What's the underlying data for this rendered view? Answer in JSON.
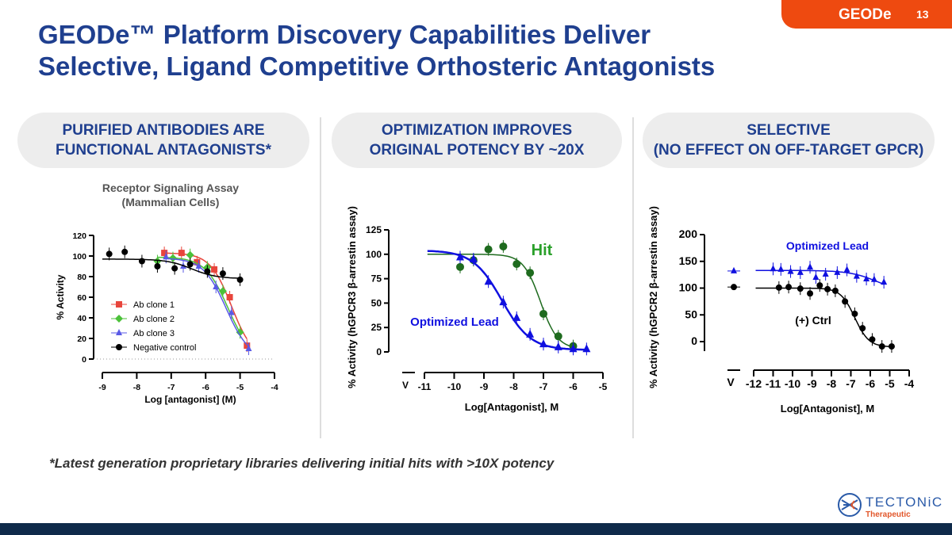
{
  "header": {
    "title_line1": "GEODe™ Platform Discovery Capabilities Deliver",
    "title_line2": "Selective, Ligand Competitive Orthosteric Antagonists",
    "badge": "GEODe",
    "page_number": "13"
  },
  "pills": [
    {
      "line1": "PURIFIED ANTIBODIES ARE",
      "line2": "FUNCTIONAL ANTAGONISTS*"
    },
    {
      "line1": "OPTIMIZATION IMPROVES",
      "line2": "ORIGINAL POTENCY BY ~20X"
    },
    {
      "line1": "SELECTIVE",
      "line2": "(NO EFFECT ON OFF-TARGET GPCR)"
    }
  ],
  "footnote": "*Latest generation proprietary libraries delivering initial hits with >10X potency",
  "logo": {
    "name": "TECTONiC",
    "sub": "Therapeutic"
  },
  "colors": {
    "brand_blue": "#1f3f8f",
    "accent_orange": "#ee4a10",
    "footer": "#0f2a4a"
  },
  "chart_data": [
    {
      "type": "scatter",
      "title": "Receptor Signaling Assay",
      "subtitle": "(Mammalian Cells)",
      "xlabel": "Log [antagonist] (M)",
      "ylabel": "% Activity",
      "xlim": [
        -9,
        -4
      ],
      "ylim": [
        0,
        120
      ],
      "xticks": [
        -9,
        -8,
        -7,
        -6,
        -5,
        -4
      ],
      "yticks": [
        0,
        20,
        40,
        60,
        80,
        100,
        120
      ],
      "legend": "bottom-left",
      "series": [
        {
          "name": "Ab clone 1",
          "color": "#e8453c",
          "marker": "square",
          "x": [
            -7.2,
            -6.7,
            -6.25,
            -5.75,
            -5.3,
            -4.8
          ],
          "y": [
            103,
            103,
            94,
            87,
            60,
            13
          ]
        },
        {
          "name": "Ab clone 2",
          "color": "#4cc13a",
          "marker": "diamond",
          "x": [
            -7.4,
            -6.95,
            -6.45,
            -5.95,
            -5.5,
            -5.0
          ],
          "y": [
            95,
            98,
            101,
            89,
            66,
            26
          ]
        },
        {
          "name": "Ab clone 3",
          "color": "#5a5ae6",
          "marker": "triangle",
          "x": [
            -7.15,
            -6.65,
            -6.2,
            -5.7,
            -5.25,
            -4.75
          ],
          "y": [
            99,
            90,
            90,
            70,
            45,
            10
          ]
        },
        {
          "name": "Negative control",
          "color": "#000000",
          "marker": "circle",
          "x": [
            -8.8,
            -8.35,
            -7.85,
            -7.4,
            -6.9,
            -6.45,
            -5.95,
            -5.5,
            -5.0
          ],
          "y": [
            102,
            104,
            95,
            90,
            88,
            92,
            85,
            83,
            77
          ]
        }
      ]
    },
    {
      "type": "scatter",
      "xlabel": "Log[Antagonist], M",
      "ylabel": "% Activity (hGPCR3 β-arrestin assay)",
      "xlim": [
        -11,
        -5
      ],
      "ylim": [
        0,
        125
      ],
      "xticks": [
        -11,
        -10,
        -9,
        -8,
        -7,
        -6,
        -5
      ],
      "yticks": [
        0,
        25,
        50,
        75,
        100,
        125
      ],
      "vehicle_label": "V",
      "series": [
        {
          "name": "Hit",
          "color": "#1e6b1e",
          "marker": "circle",
          "x": [
            -9.8,
            -9.35,
            -8.85,
            -8.35,
            -7.9,
            -7.45,
            -7.0,
            -6.5,
            -6.0
          ],
          "y": [
            87,
            94,
            105,
            108,
            90,
            81,
            39,
            16,
            6
          ]
        },
        {
          "name": "Optimized Lead",
          "color": "#1010e0",
          "marker": "triangle",
          "x": [
            -9.8,
            -9.35,
            -8.85,
            -8.35,
            -7.9,
            -7.45,
            -7.0,
            -6.5,
            -6.0,
            -5.55
          ],
          "y": [
            97,
            95,
            72,
            51,
            35,
            18,
            8,
            5,
            3,
            3
          ]
        }
      ]
    },
    {
      "type": "scatter",
      "xlabel": "Log[Antagonist], M",
      "ylabel": "% Activity (hGPCR2 β-arrestin assay)",
      "xlim": [
        -12,
        -4
      ],
      "ylim": [
        0,
        200
      ],
      "xticks": [
        -12,
        -11,
        -10,
        -9,
        -8,
        -7,
        -6,
        -5,
        -4
      ],
      "yticks": [
        0,
        50,
        100,
        150,
        200
      ],
      "vehicle_label": "V",
      "series": [
        {
          "name": "Optimized Lead",
          "color": "#1010e0",
          "marker": "triangle",
          "vehicle": 132,
          "x": [
            -11,
            -10.6,
            -10.1,
            -9.6,
            -9.1,
            -8.8,
            -8.3,
            -7.7,
            -7.2,
            -6.7,
            -6.2,
            -5.8,
            -5.3
          ],
          "y": [
            136,
            135,
            131,
            129,
            139,
            120,
            126,
            129,
            134,
            122,
            117,
            116,
            111
          ]
        },
        {
          "name": "(+) Ctrl",
          "color": "#000000",
          "marker": "circle",
          "vehicle": 102,
          "x": [
            -10.7,
            -10.2,
            -9.6,
            -9.1,
            -8.6,
            -8.2,
            -7.8,
            -7.3,
            -6.8,
            -6.4,
            -5.9,
            -5.4,
            -4.9
          ],
          "y": [
            101,
            102,
            99,
            90,
            105,
            98,
            95,
            75,
            52,
            25,
            4,
            -9,
            -9
          ]
        }
      ]
    }
  ]
}
